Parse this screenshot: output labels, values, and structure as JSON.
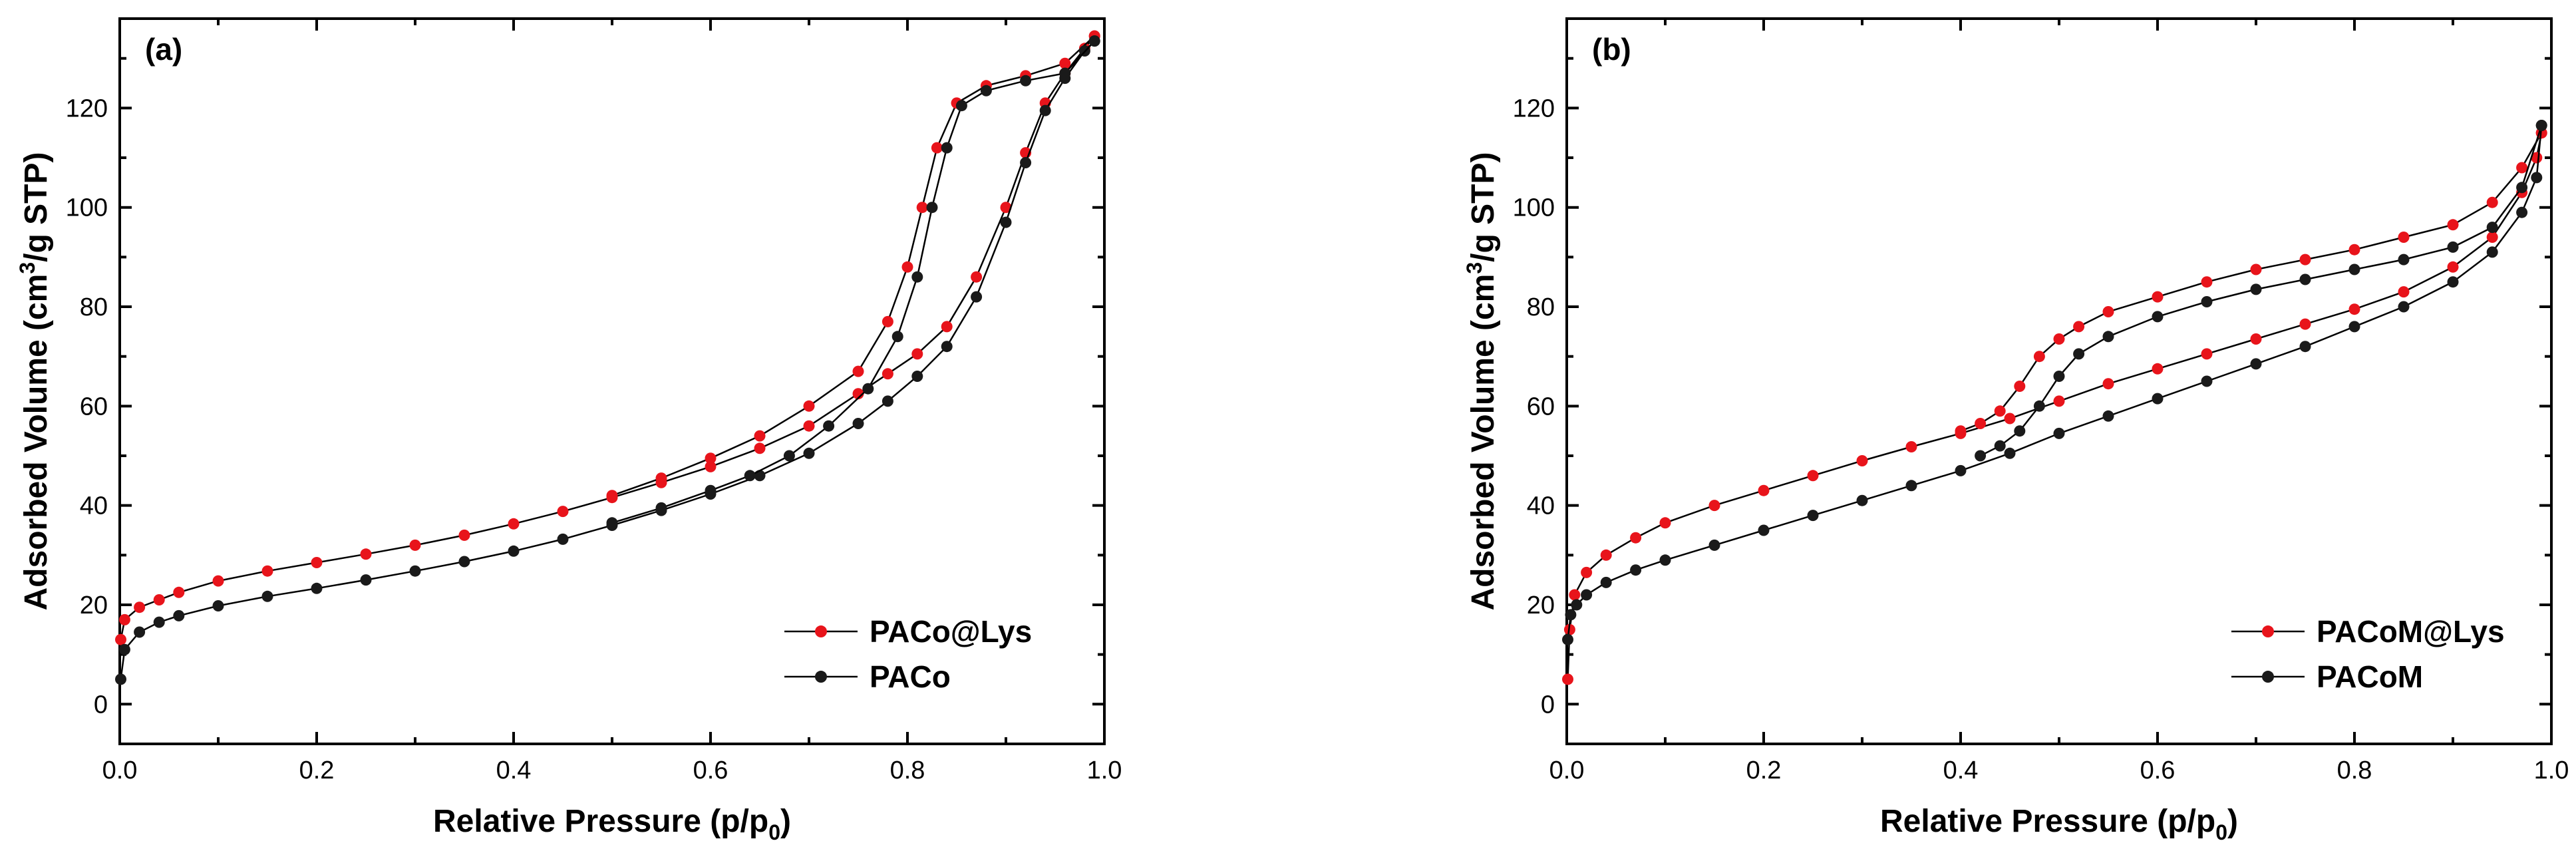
{
  "chart_data": [
    {
      "type": "line",
      "panel_label": "(a)",
      "xlabel": "Relative Pressure (p/p",
      "xlabel_sub": "0",
      "xlabel_end": ")",
      "ylabel": "Adsorbed Volume (cm",
      "ylabel_sup": "3",
      "ylabel_end": "/g STP)",
      "xlim": [
        0,
        1.0
      ],
      "ylim": [
        -8,
        138
      ],
      "xticks": [
        0.0,
        0.2,
        0.4,
        0.6,
        0.8,
        1.0
      ],
      "xtick_labels": [
        "0.0",
        "0.2",
        "0.4",
        "0.6",
        "0.8",
        "1.0"
      ],
      "yticks": [
        0,
        20,
        40,
        60,
        80,
        100,
        120
      ],
      "ytick_labels": [
        "0",
        "20",
        "40",
        "60",
        "80",
        "100",
        "120"
      ],
      "legend_position": "lower-right",
      "series": [
        {
          "name": "PACo@Lys",
          "color": "#e8141b",
          "adsorption": [
            [
              0.001,
              13
            ],
            [
              0.005,
              17
            ],
            [
              0.02,
              19.5
            ],
            [
              0.04,
              21
            ],
            [
              0.06,
              22.5
            ],
            [
              0.1,
              24.8
            ],
            [
              0.15,
              26.8
            ],
            [
              0.2,
              28.5
            ],
            [
              0.25,
              30.2
            ],
            [
              0.3,
              32
            ],
            [
              0.35,
              34
            ],
            [
              0.4,
              36.3
            ],
            [
              0.45,
              38.8
            ],
            [
              0.5,
              41.6
            ],
            [
              0.55,
              44.6
            ],
            [
              0.6,
              47.8
            ],
            [
              0.65,
              51.5
            ],
            [
              0.7,
              56
            ],
            [
              0.75,
              62.5
            ],
            [
              0.78,
              66.5
            ],
            [
              0.81,
              70.5
            ],
            [
              0.84,
              76
            ],
            [
              0.87,
              86
            ],
            [
              0.9,
              100
            ],
            [
              0.92,
              111
            ],
            [
              0.94,
              121
            ],
            [
              0.96,
              127
            ],
            [
              0.98,
              132
            ],
            [
              0.99,
              134.5
            ]
          ],
          "desorption": [
            [
              0.99,
              134.5
            ],
            [
              0.96,
              129
            ],
            [
              0.92,
              126.5
            ],
            [
              0.88,
              124.5
            ],
            [
              0.85,
              121
            ],
            [
              0.83,
              112
            ],
            [
              0.815,
              100
            ],
            [
              0.8,
              88
            ],
            [
              0.78,
              77
            ],
            [
              0.75,
              67
            ],
            [
              0.7,
              60
            ],
            [
              0.65,
              54
            ],
            [
              0.6,
              49.5
            ],
            [
              0.55,
              45.5
            ],
            [
              0.5,
              42
            ]
          ]
        },
        {
          "name": "PACo",
          "color": "#1a1a1a",
          "adsorption": [
            [
              0.001,
              5
            ],
            [
              0.005,
              11
            ],
            [
              0.02,
              14.5
            ],
            [
              0.04,
              16.5
            ],
            [
              0.06,
              17.8
            ],
            [
              0.1,
              19.8
            ],
            [
              0.15,
              21.7
            ],
            [
              0.2,
              23.3
            ],
            [
              0.25,
              25
            ],
            [
              0.3,
              26.8
            ],
            [
              0.35,
              28.7
            ],
            [
              0.4,
              30.8
            ],
            [
              0.45,
              33.2
            ],
            [
              0.5,
              36
            ],
            [
              0.55,
              39
            ],
            [
              0.6,
              42.3
            ],
            [
              0.65,
              46
            ],
            [
              0.7,
              50.5
            ],
            [
              0.75,
              56.5
            ],
            [
              0.78,
              61
            ],
            [
              0.81,
              66
            ],
            [
              0.84,
              72
            ],
            [
              0.87,
              82
            ],
            [
              0.9,
              97
            ],
            [
              0.92,
              109
            ],
            [
              0.94,
              119.5
            ],
            [
              0.96,
              126
            ],
            [
              0.98,
              131.5
            ],
            [
              0.99,
              133.5
            ]
          ],
          "desorption": [
            [
              0.99,
              133.5
            ],
            [
              0.96,
              127
            ],
            [
              0.92,
              125.5
            ],
            [
              0.88,
              123.5
            ],
            [
              0.855,
              120.5
            ],
            [
              0.84,
              112
            ],
            [
              0.825,
              100
            ],
            [
              0.81,
              86
            ],
            [
              0.79,
              74
            ],
            [
              0.76,
              63.5
            ],
            [
              0.72,
              56
            ],
            [
              0.68,
              50
            ],
            [
              0.64,
              46
            ],
            [
              0.6,
              43
            ],
            [
              0.55,
              39.5
            ],
            [
              0.5,
              36.5
            ]
          ]
        }
      ]
    },
    {
      "type": "line",
      "panel_label": "(b)",
      "xlabel": "Relative Pressure (p/p",
      "xlabel_sub": "0",
      "xlabel_end": ")",
      "ylabel": "Adsorbed Volume (cm",
      "ylabel_sup": "3",
      "ylabel_end": "/g STP)",
      "xlim": [
        0,
        1.0
      ],
      "ylim": [
        -8,
        138
      ],
      "xticks": [
        0.0,
        0.2,
        0.4,
        0.6,
        0.8,
        1.0
      ],
      "xtick_labels": [
        "0.0",
        "0.2",
        "0.4",
        "0.6",
        "0.8",
        "1.0"
      ],
      "yticks": [
        0,
        20,
        40,
        60,
        80,
        100,
        120
      ],
      "ytick_labels": [
        "0",
        "20",
        "40",
        "60",
        "80",
        "100",
        "120"
      ],
      "legend_position": "lower-right",
      "series": [
        {
          "name": "PACoM@Lys",
          "color": "#e8141b",
          "adsorption": [
            [
              0.001,
              5
            ],
            [
              0.003,
              15
            ],
            [
              0.008,
              22
            ],
            [
              0.02,
              26.5
            ],
            [
              0.04,
              30
            ],
            [
              0.07,
              33.5
            ],
            [
              0.1,
              36.5
            ],
            [
              0.15,
              40
            ],
            [
              0.2,
              43
            ],
            [
              0.25,
              46
            ],
            [
              0.3,
              49
            ],
            [
              0.35,
              51.8
            ],
            [
              0.4,
              54.5
            ],
            [
              0.45,
              57.5
            ],
            [
              0.5,
              61
            ],
            [
              0.55,
              64.5
            ],
            [
              0.6,
              67.5
            ],
            [
              0.65,
              70.5
            ],
            [
              0.7,
              73.5
            ],
            [
              0.75,
              76.5
            ],
            [
              0.8,
              79.5
            ],
            [
              0.85,
              83
            ],
            [
              0.9,
              88
            ],
            [
              0.94,
              94
            ],
            [
              0.97,
              103
            ],
            [
              0.985,
              110
            ],
            [
              0.99,
              115
            ]
          ],
          "desorption": [
            [
              0.99,
              115
            ],
            [
              0.97,
              108
            ],
            [
              0.94,
              101
            ],
            [
              0.9,
              96.5
            ],
            [
              0.85,
              94
            ],
            [
              0.8,
              91.5
            ],
            [
              0.75,
              89.5
            ],
            [
              0.7,
              87.5
            ],
            [
              0.65,
              85
            ],
            [
              0.6,
              82
            ],
            [
              0.55,
              79
            ],
            [
              0.52,
              76
            ],
            [
              0.5,
              73.5
            ],
            [
              0.48,
              70
            ],
            [
              0.46,
              64
            ],
            [
              0.44,
              59
            ],
            [
              0.42,
              56.5
            ],
            [
              0.4,
              55
            ]
          ]
        },
        {
          "name": "PACoM",
          "color": "#1a1a1a",
          "adsorption": [
            [
              0.001,
              13
            ],
            [
              0.004,
              18
            ],
            [
              0.01,
              20
            ],
            [
              0.02,
              22
            ],
            [
              0.04,
              24.5
            ],
            [
              0.07,
              27
            ],
            [
              0.1,
              29
            ],
            [
              0.15,
              32
            ],
            [
              0.2,
              35
            ],
            [
              0.25,
              38
            ],
            [
              0.3,
              41
            ],
            [
              0.35,
              44
            ],
            [
              0.4,
              47
            ],
            [
              0.45,
              50.5
            ],
            [
              0.5,
              54.5
            ],
            [
              0.55,
              58
            ],
            [
              0.6,
              61.5
            ],
            [
              0.65,
              65
            ],
            [
              0.7,
              68.5
            ],
            [
              0.75,
              72
            ],
            [
              0.8,
              76
            ],
            [
              0.85,
              80
            ],
            [
              0.9,
              85
            ],
            [
              0.94,
              91
            ],
            [
              0.97,
              99
            ],
            [
              0.985,
              106
            ],
            [
              0.99,
              116.5
            ]
          ],
          "desorption": [
            [
              0.99,
              116.5
            ],
            [
              0.97,
              104
            ],
            [
              0.94,
              96
            ],
            [
              0.9,
              92
            ],
            [
              0.85,
              89.5
            ],
            [
              0.8,
              87.5
            ],
            [
              0.75,
              85.5
            ],
            [
              0.7,
              83.5
            ],
            [
              0.65,
              81
            ],
            [
              0.6,
              78
            ],
            [
              0.55,
              74
            ],
            [
              0.52,
              70.5
            ],
            [
              0.5,
              66
            ],
            [
              0.48,
              60
            ],
            [
              0.46,
              55
            ],
            [
              0.44,
              52
            ],
            [
              0.42,
              50
            ]
          ]
        }
      ]
    }
  ]
}
